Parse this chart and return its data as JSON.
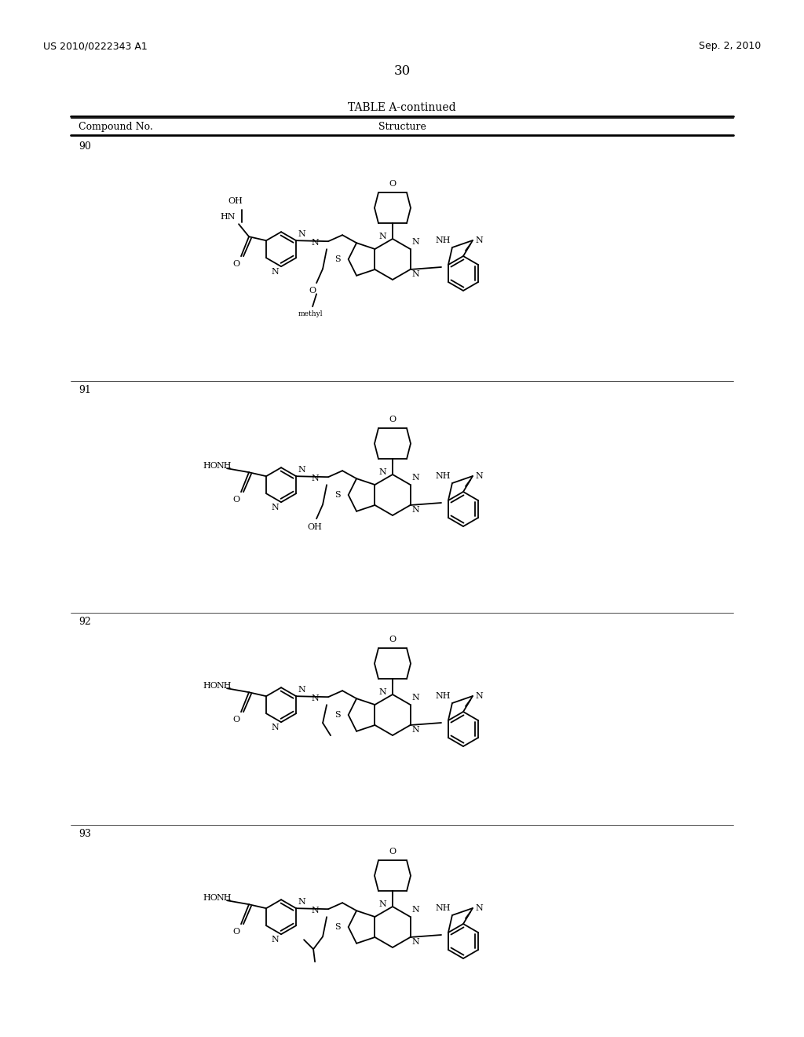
{
  "bg": "#ffffff",
  "patent_left": "US 2010/0222343 A1",
  "patent_right": "Sep. 2, 2010",
  "page_num": "30",
  "table_title": "TABLE A-continued",
  "col1": "Compound No.",
  "col2": "Structure",
  "compounds": [
    "90",
    "91",
    "92",
    "93"
  ],
  "figsize": [
    10.24,
    13.2
  ],
  "dpi": 100
}
